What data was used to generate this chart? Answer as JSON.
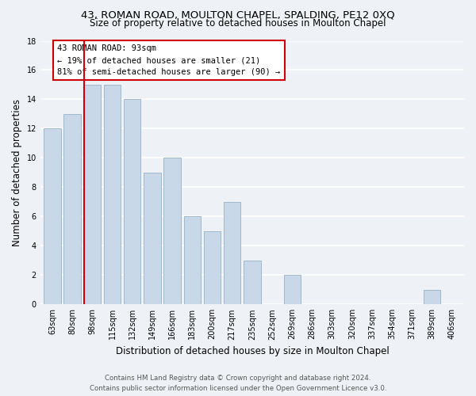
{
  "title": "43, ROMAN ROAD, MOULTON CHAPEL, SPALDING, PE12 0XQ",
  "subtitle": "Size of property relative to detached houses in Moulton Chapel",
  "xlabel": "Distribution of detached houses by size in Moulton Chapel",
  "ylabel": "Number of detached properties",
  "footer_line1": "Contains HM Land Registry data © Crown copyright and database right 2024.",
  "footer_line2": "Contains public sector information licensed under the Open Government Licence v3.0.",
  "bar_labels": [
    "63sqm",
    "80sqm",
    "98sqm",
    "115sqm",
    "132sqm",
    "149sqm",
    "166sqm",
    "183sqm",
    "200sqm",
    "217sqm",
    "235sqm",
    "252sqm",
    "269sqm",
    "286sqm",
    "303sqm",
    "320sqm",
    "337sqm",
    "354sqm",
    "371sqm",
    "389sqm",
    "406sqm"
  ],
  "bar_values": [
    12,
    13,
    15,
    15,
    14,
    9,
    10,
    6,
    5,
    7,
    3,
    0,
    2,
    0,
    0,
    0,
    0,
    0,
    0,
    1,
    0
  ],
  "bar_color": "#c8d8e8",
  "bar_edge_color": "#a0b8cc",
  "property_line_label": "43 ROMAN ROAD: 93sqm",
  "annotation_line2": "← 19% of detached houses are smaller (21)",
  "annotation_line3": "81% of semi-detached houses are larger (90) →",
  "annotation_box_color": "#ffffff",
  "annotation_box_edge": "#cc0000",
  "property_line_color": "#cc0000",
  "property_line_bar_index": 1.575,
  "ylim": [
    0,
    18
  ],
  "yticks": [
    0,
    2,
    4,
    6,
    8,
    10,
    12,
    14,
    16,
    18
  ],
  "bg_color": "#eef2f7",
  "grid_color": "#ffffff",
  "title_fontsize": 9.5,
  "subtitle_fontsize": 8.5,
  "axis_label_fontsize": 8.5,
  "tick_fontsize": 7,
  "annotation_fontsize": 7.5,
  "footer_fontsize": 6.2
}
